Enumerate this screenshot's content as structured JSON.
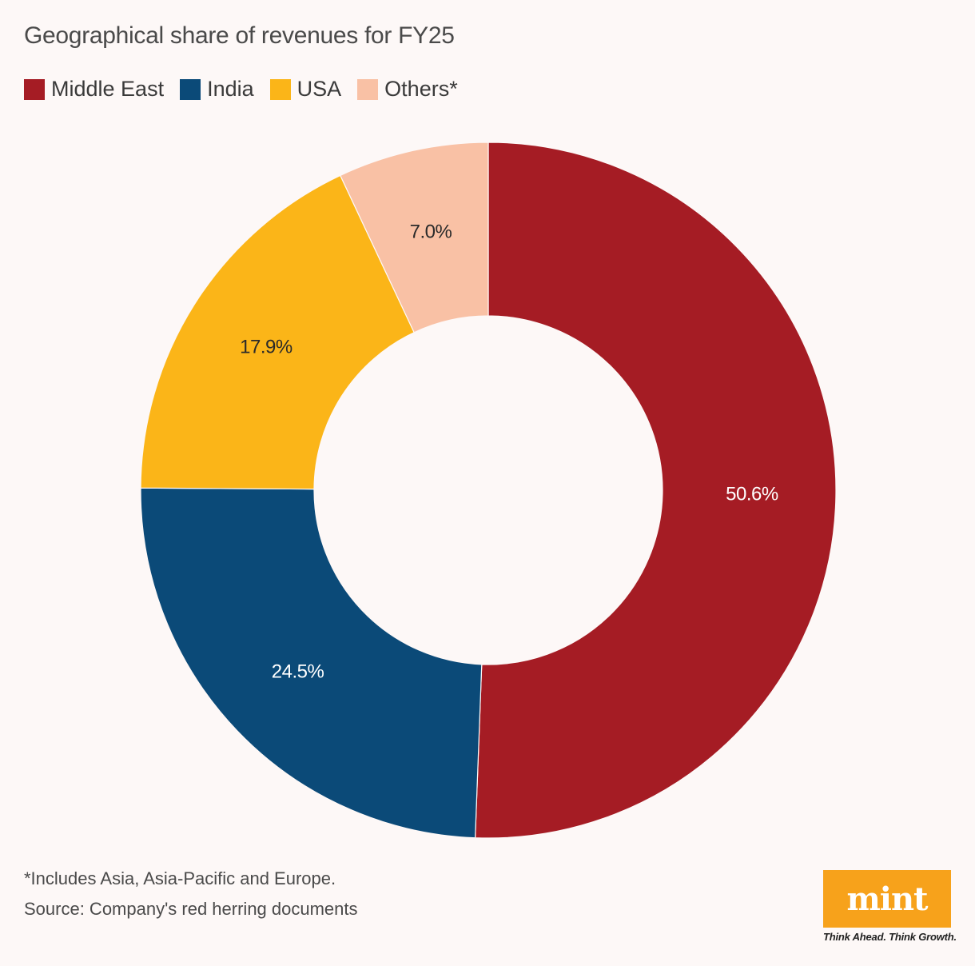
{
  "title": "Geographical share of revenues for FY25",
  "footnote": "*Includes Asia, Asia-Pacific and Europe.",
  "source": "Source: Company's red herring documents",
  "logo": {
    "text": "mint",
    "tagline": "Think Ahead. Think Growth.",
    "color": "#f7a21b"
  },
  "chart_data": {
    "type": "pie",
    "title": "Geographical share of revenues for FY25",
    "unit": "%",
    "donut": true,
    "legend_placement": "top-left",
    "slices": [
      {
        "name": "Middle East",
        "value": 50.6,
        "label": "50.6%",
        "color": "#a51c24",
        "label_color": "#ffffff"
      },
      {
        "name": "India",
        "value": 24.5,
        "label": "24.5%",
        "color": "#0b4a78",
        "label_color": "#ffffff"
      },
      {
        "name": "USA",
        "value": 17.9,
        "label": "17.9%",
        "color": "#fbb518",
        "label_color": "#2a2a2a"
      },
      {
        "name": "Others*",
        "value": 7.0,
        "label": "7.0%",
        "color": "#f9c1a5",
        "label_color": "#2a2a2a"
      }
    ]
  }
}
